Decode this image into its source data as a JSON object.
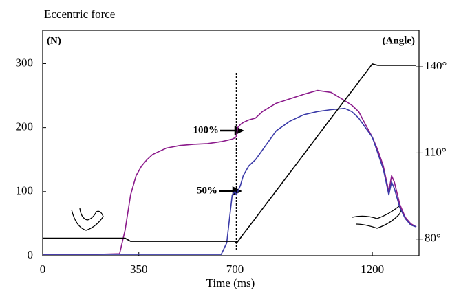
{
  "chart_data": {
    "type": "line",
    "title": "Eccentric force",
    "x_label": "Time (ms)",
    "y_label": "(N)",
    "y2_label": "(Angle)",
    "x": [
      0,
      100,
      200,
      280,
      300,
      320,
      340,
      360,
      380,
      400,
      450,
      500,
      550,
      600,
      650,
      670,
      690,
      700,
      705,
      710,
      720,
      730,
      750,
      775,
      800,
      850,
      900,
      950,
      1000,
      1050,
      1100,
      1125,
      1150,
      1175,
      1200,
      1220,
      1240,
      1250,
      1260,
      1270,
      1280,
      1300,
      1320,
      1340,
      1360
    ],
    "series": [
      {
        "color": "#8b1a8b",
        "values": [
          2,
          2,
          2,
          3,
          40,
          95,
          125,
          140,
          150,
          158,
          168,
          172,
          174,
          175,
          178,
          180,
          182,
          184,
          186,
          200,
          205,
          208,
          212,
          215,
          225,
          238,
          245,
          252,
          258,
          255,
          242,
          235,
          225,
          205,
          185,
          165,
          140,
          120,
          100,
          125,
          115,
          80,
          60,
          50,
          45
        ]
      },
      {
        "color": "#3a3aa8",
        "values": [
          2,
          2,
          2,
          2,
          2,
          2,
          2,
          2,
          2,
          2,
          2,
          2,
          2,
          2,
          2,
          20,
          95,
          100,
          95,
          100,
          110,
          125,
          140,
          150,
          165,
          195,
          210,
          220,
          225,
          228,
          230,
          225,
          215,
          200,
          185,
          160,
          135,
          115,
          95,
          115,
          105,
          75,
          58,
          48,
          45
        ]
      },
      {
        "color": "#000000",
        "axis": "y2",
        "values": [
          80.3,
          80.3,
          80.3,
          80.3,
          80.3,
          79.2,
          79.2,
          79.2,
          79.2,
          79.2,
          79.2,
          79.2,
          79.2,
          79.2,
          79.2,
          79.2,
          79.2,
          79.2,
          78.5,
          79.1,
          80.4,
          81.7,
          84.2,
          87.3,
          90.5,
          96.8,
          103.1,
          109.4,
          115.8,
          122.1,
          128.4,
          131.5,
          134.7,
          137.8,
          141,
          140.5,
          140.5,
          140.5,
          140.5,
          140.5,
          140.5,
          140.5,
          140.5,
          140.5,
          140.5
        ]
      }
    ],
    "xlim": [
      0,
      1370
    ],
    "xticks": [
      0,
      350,
      700,
      1200
    ],
    "ylim": [
      0,
      352
    ],
    "yticks": [
      0,
      100,
      200,
      300
    ],
    "y2lim": [
      74.2,
      152.7
    ],
    "y2ticks": [
      {
        "value": 80,
        "label": "80°"
      },
      {
        "value": 110,
        "label": "110°"
      },
      {
        "value": 140,
        "label": "140°"
      }
    ],
    "vline": 705,
    "annotations": [
      "100%",
      "50%"
    ]
  }
}
